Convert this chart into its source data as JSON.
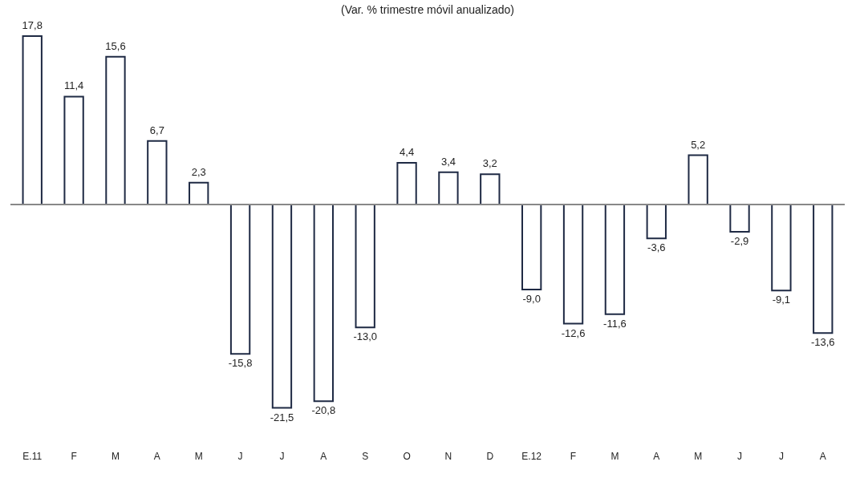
{
  "chart_data": {
    "type": "bar",
    "title": "(Var. % trimestre móvil anualizado)",
    "categories": [
      "E.11",
      "F",
      "M",
      "A",
      "M",
      "J",
      "J",
      "A",
      "S",
      "O",
      "N",
      "D",
      "E.12",
      "F",
      "M",
      "A",
      "M",
      "J",
      "J",
      "A"
    ],
    "values": [
      17.8,
      11.4,
      15.6,
      6.7,
      2.3,
      -15.8,
      -21.5,
      -20.8,
      -13.0,
      4.4,
      3.4,
      3.2,
      -9.0,
      -12.6,
      -11.6,
      -3.6,
      5.2,
      -2.9,
      -9.1,
      -13.6
    ],
    "value_labels": [
      "17,8",
      "11,4",
      "15,6",
      "6,7",
      "2,3",
      "-15,8",
      "-21,5",
      "-20,8",
      "-13,0",
      "4,4",
      "3,4",
      "3,2",
      "-9,0",
      "-12,6",
      "-11,6",
      "-3,6",
      "5,2",
      "-2,9",
      "-9,1",
      "-13,6"
    ],
    "color": "#ffffff"
  }
}
